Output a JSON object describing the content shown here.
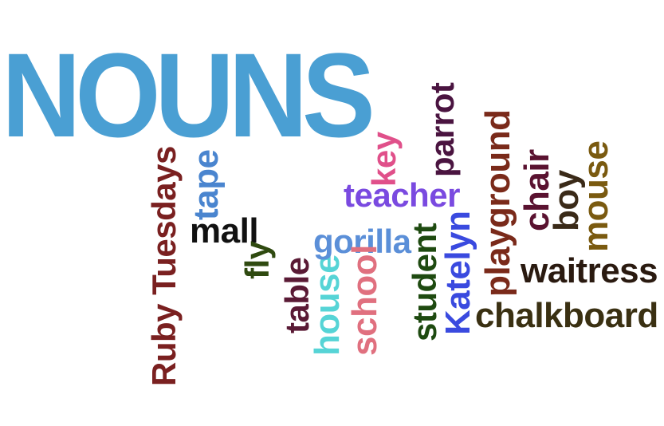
{
  "colors": {
    "title": "#4a9fd3",
    "ruby": "#7a2020",
    "tape": "#4a85cf",
    "mall": "#111111",
    "fly": "#2f4a10",
    "table": "#5a1a35",
    "house": "#56d4d6",
    "gorilla": "#5b8fd8",
    "school": "#e0707f",
    "key": "#e0508a",
    "teacher": "#7a4ae0",
    "parrot": "#4a1440",
    "student": "#1e4a10",
    "katelyn": "#3a4adf",
    "playground": "#7a2a1a",
    "chair": "#5a1230",
    "boy": "#3a2a18",
    "mouse": "#7a5a10",
    "waitress": "#2a1a10",
    "chalkboard": "#3a3012"
  },
  "words": {
    "title": "NOUNS",
    "ruby": "Ruby Tuesdays",
    "tape": "tape",
    "mall": "mall",
    "fly": "fly",
    "table": "table",
    "house": "house",
    "gorilla": "gorilla",
    "school": "school",
    "key": "key",
    "teacher": "teacher",
    "parrot": "parrot",
    "student": "student",
    "katelyn": "Katelyn",
    "playground": "playground",
    "chair": "chair",
    "boy": "boy",
    "mouse": "mouse",
    "waitress": "waitress",
    "chalkboard": "chalkboard"
  }
}
